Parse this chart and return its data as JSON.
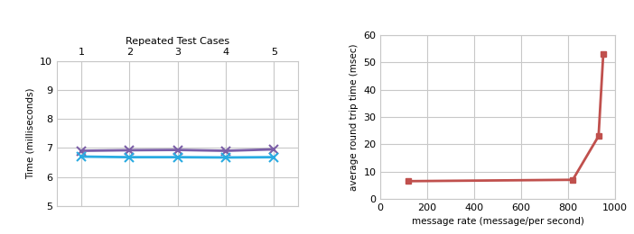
{
  "left": {
    "title": "Repeated Test Cases",
    "ylabel": "Time (milliseconds)",
    "xlim": [
      0.5,
      5.5
    ],
    "ylim": [
      5,
      10
    ],
    "yticks": [
      5,
      6,
      7,
      8,
      9,
      10
    ],
    "xticks": [
      1,
      2,
      3,
      4,
      5
    ],
    "series": [
      {
        "x": [
          1,
          2,
          3,
          4,
          5
        ],
        "y": [
          6.9,
          6.92,
          6.93,
          6.9,
          6.95
        ],
        "color": "#7B5EA7",
        "marker": "x",
        "markersize": 7,
        "linewidth": 2.0
      },
      {
        "x": [
          1,
          2,
          3,
          4,
          5
        ],
        "y": [
          6.7,
          6.68,
          6.68,
          6.67,
          6.68
        ],
        "color": "#29ABE2",
        "marker": "x",
        "markersize": 7,
        "linewidth": 2.0
      }
    ]
  },
  "right": {
    "xlabel": "message rate (message/per second)",
    "ylabel": "average round trip time (msec)",
    "xlim": [
      0,
      1000
    ],
    "ylim": [
      0,
      60
    ],
    "yticks": [
      0,
      10,
      20,
      30,
      40,
      50,
      60
    ],
    "xticks": [
      0,
      200,
      400,
      600,
      800,
      1000
    ],
    "series": [
      {
        "x": [
          120,
          820,
          930,
          950
        ],
        "y": [
          6.5,
          7.0,
          23.0,
          53.0
        ],
        "color": "#C0504D",
        "marker": "s",
        "markersize": 5,
        "linewidth": 2.0
      }
    ]
  },
  "bg_color": "#FFFFFF",
  "grid_color": "#C8C8C8"
}
